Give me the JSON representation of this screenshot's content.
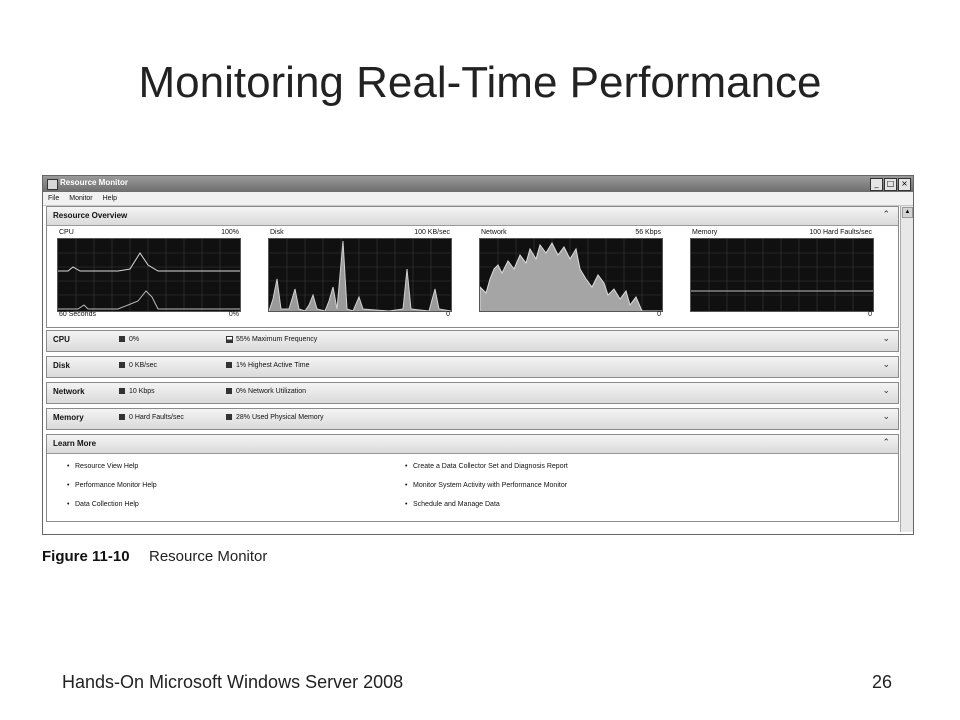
{
  "slide": {
    "title": "Monitoring Real-Time Performance",
    "footer_left": "Hands-On Microsoft Windows Server 2008",
    "page_number": "26"
  },
  "figure": {
    "number": "Figure 11-10",
    "caption": "Resource Monitor"
  },
  "window": {
    "title": "Resource Monitor",
    "buttons": [
      "_",
      "□",
      "×"
    ],
    "menu": [
      "File",
      "Monitor",
      "Help"
    ]
  },
  "overview": {
    "title": "Resource Overview",
    "graphs": [
      {
        "label": "CPU",
        "max": "100%",
        "bottom_left": "60 Seconds",
        "bottom_right": "0%"
      },
      {
        "label": "Disk",
        "max": "100 KB/sec",
        "bottom_left": "",
        "bottom_right": "0"
      },
      {
        "label": "Network",
        "max": "56 Kbps",
        "bottom_left": "",
        "bottom_right": "0"
      },
      {
        "label": "Memory",
        "max": "100 Hard Faults/sec",
        "bottom_left": "",
        "bottom_right": "0"
      }
    ]
  },
  "sections": [
    {
      "title": "CPU",
      "stat1": "0%",
      "stat2": "55% Maximum Frequency"
    },
    {
      "title": "Disk",
      "stat1": "0 KB/sec",
      "stat2": "1% Highest Active Time"
    },
    {
      "title": "Network",
      "stat1": "10 Kbps",
      "stat2": "0% Network Utilization"
    },
    {
      "title": "Memory",
      "stat1": "0 Hard Faults/sec",
      "stat2": "28% Used Physical Memory"
    }
  ],
  "learn_more": {
    "title": "Learn More",
    "links_left": [
      "Resource View Help",
      "Performance Monitor Help",
      "Data Collection Help"
    ],
    "links_right": [
      "Create a Data Collector Set and Diagnosis Report",
      "Monitor System Activity with Performance Monitor",
      "Schedule and Manage Data"
    ]
  },
  "icons": {
    "collapse": "chevron-up-icon",
    "expand": "chevron-down-icon"
  }
}
